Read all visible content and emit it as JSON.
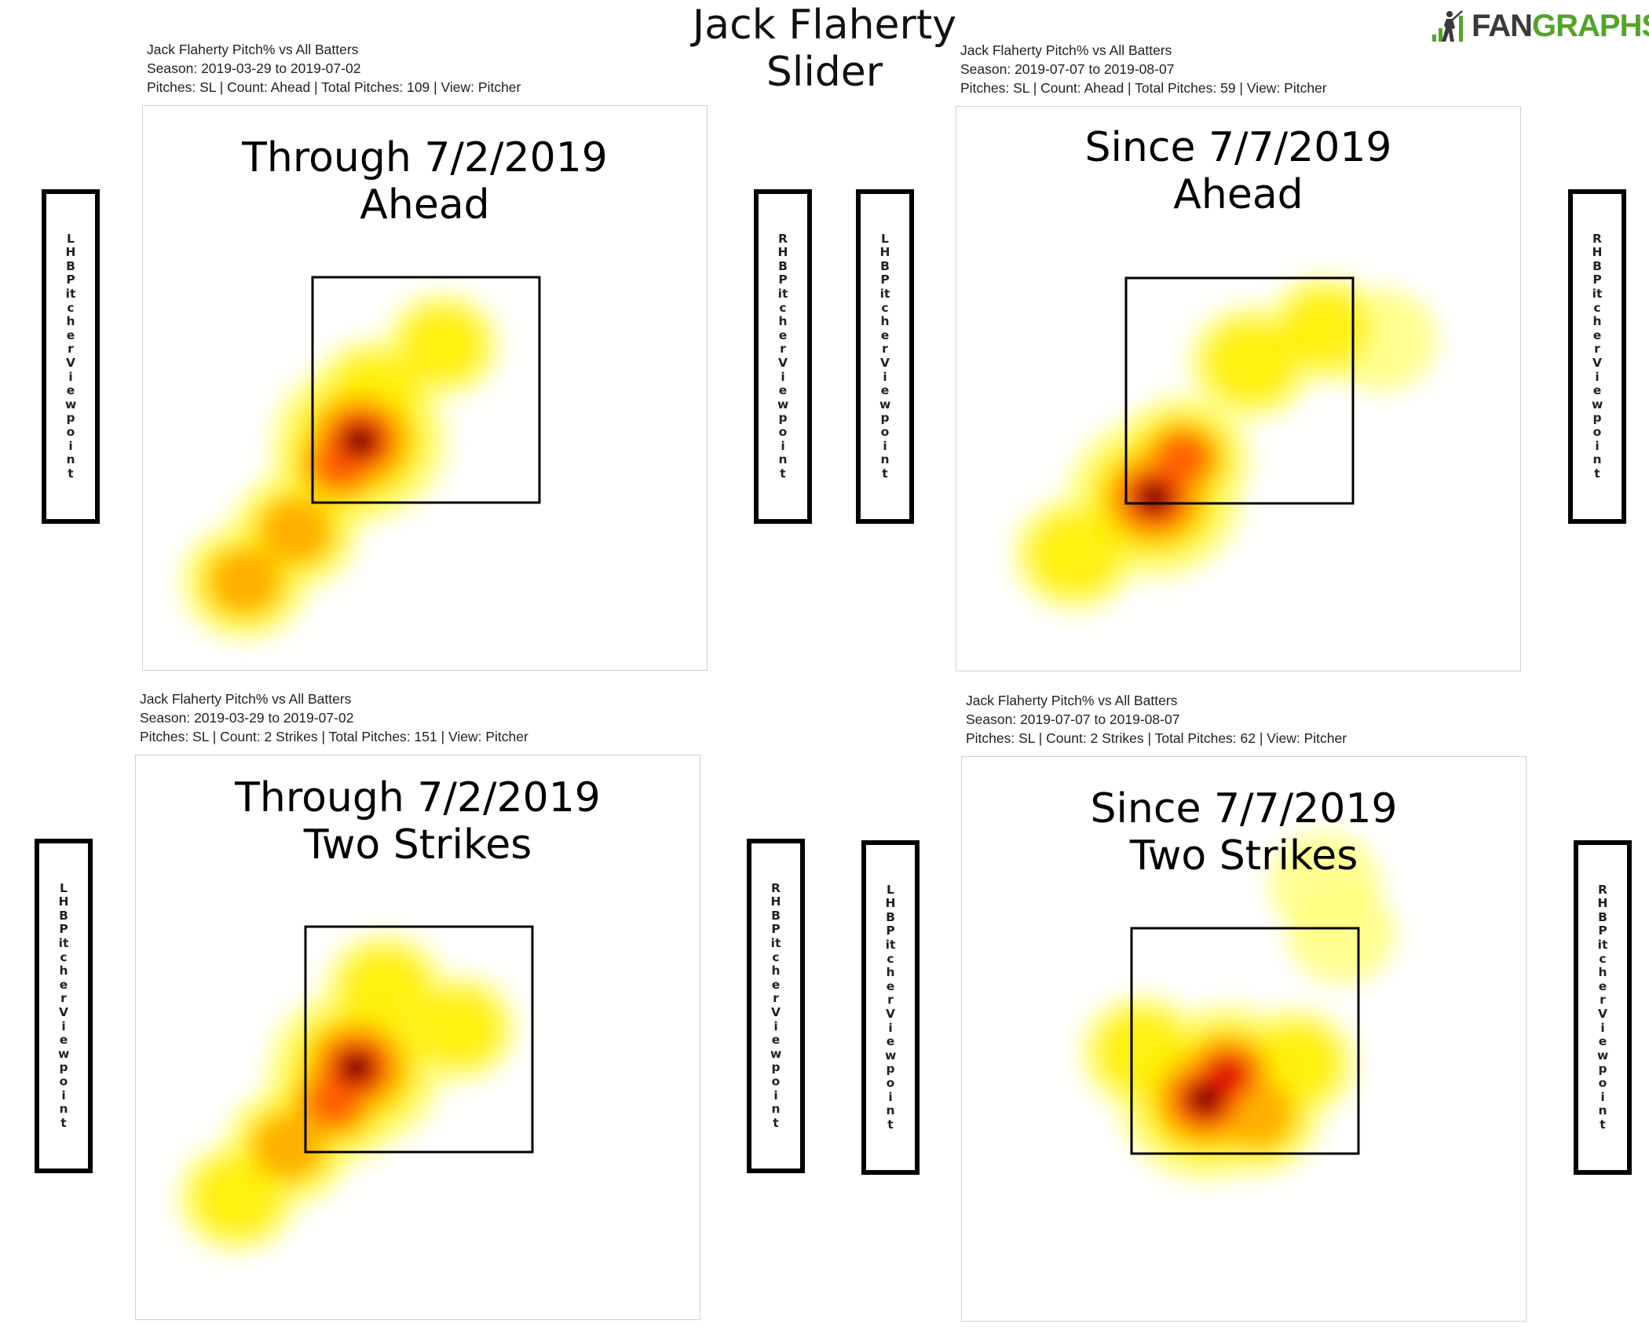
{
  "title": {
    "line1": "Jack Flaherty",
    "line2": "Slider"
  },
  "logo": {
    "text_dark": "FAN",
    "text_green": "GRAPHS",
    "icon": "fangraphs-batter-logo-icon",
    "color_green": "#52a52a"
  },
  "viewpoint_labels": {
    "left": "LHB Pitcher Viewpoint",
    "right": "RHB Pitcher Viewpoint"
  },
  "heatmap_colors": [
    "#fffef0",
    "#ffff80",
    "#ffee00",
    "#ffb000",
    "#ff6000",
    "#e00000",
    "#600000",
    "#000000"
  ],
  "panels": [
    {
      "header": {
        "line1": "Jack Flaherty Pitch% vs All Batters",
        "line2": "Season: 2019-03-29 to 2019-07-02",
        "line3": "Pitches: SL | Count: Ahead | Total Pitches: 109 | View: Pitcher"
      },
      "plot_title": {
        "line1": "Through 7/2/2019",
        "line2": "Ahead"
      }
    },
    {
      "header": {
        "line1": "Jack Flaherty Pitch% vs All Batters",
        "line2": "Season: 2019-07-07 to 2019-08-07",
        "line3": "Pitches: SL | Count: Ahead | Total Pitches: 59 | View: Pitcher"
      },
      "plot_title": {
        "line1": "Since 7/7/2019",
        "line2": "Ahead"
      }
    },
    {
      "header": {
        "line1": "Jack Flaherty Pitch% vs All Batters",
        "line2": "Season: 2019-03-29 to 2019-07-02",
        "line3": "Pitches: SL | Count: 2 Strikes | Total Pitches: 151 | View: Pitcher"
      },
      "plot_title": {
        "line1": "Through 7/2/2019",
        "line2": "Two Strikes"
      }
    },
    {
      "header": {
        "line1": "Jack Flaherty Pitch% vs All Batters",
        "line2": "Season: 2019-07-07 to 2019-08-07",
        "line3": "Pitches: SL | Count: 2 Strikes | Total Pitches: 62 | View: Pitcher"
      },
      "plot_title": {
        "line1": "Since 7/7/2019",
        "line2": "Two Strikes"
      }
    }
  ],
  "chart_data": [
    {
      "type": "heatmap",
      "title": "Through 7/2/2019 Ahead",
      "metric": "Pitch%",
      "pitch_type": "SL",
      "count": "Ahead",
      "total_pitches": 109,
      "view": "Pitcher",
      "strike_zone": "outlined square",
      "hotspots": [
        {
          "x": -0.58,
          "y": 0.55,
          "intensity": 1.0
        },
        {
          "x": -0.75,
          "y": 0.35,
          "intensity": 0.55
        },
        {
          "x": -1.15,
          "y": -0.25,
          "intensity": 0.4
        },
        {
          "x": -1.6,
          "y": -0.7,
          "intensity": 0.4
        },
        {
          "x": -0.45,
          "y": 0.95,
          "intensity": 0.35
        },
        {
          "x": 0.15,
          "y": 1.4,
          "intensity": 0.22
        }
      ]
    },
    {
      "type": "heatmap",
      "title": "Since 7/7/2019 Ahead",
      "metric": "Pitch%",
      "pitch_type": "SL",
      "count": "Ahead",
      "total_pitches": 59,
      "view": "Pitcher",
      "strike_zone": "outlined square",
      "hotspots": [
        {
          "x": -0.75,
          "y": 0.05,
          "intensity": 1.0
        },
        {
          "x": -0.5,
          "y": 0.4,
          "intensity": 0.5
        },
        {
          "x": 0.1,
          "y": 1.25,
          "intensity": 0.35
        },
        {
          "x": 0.75,
          "y": 1.55,
          "intensity": 0.25
        },
        {
          "x": -1.45,
          "y": -0.45,
          "intensity": 0.35
        },
        {
          "x": 1.25,
          "y": 1.45,
          "intensity": 0.2
        }
      ]
    },
    {
      "type": "heatmap",
      "title": "Through 7/2/2019 Two Strikes",
      "metric": "Pitch%",
      "pitch_type": "SL",
      "count": "2 Strikes",
      "total_pitches": 151,
      "view": "Pitcher",
      "strike_zone": "outlined square",
      "hotspots": [
        {
          "x": -0.55,
          "y": 0.75,
          "intensity": 1.0
        },
        {
          "x": -0.75,
          "y": 0.45,
          "intensity": 0.55
        },
        {
          "x": -1.15,
          "y": 0.05,
          "intensity": 0.4
        },
        {
          "x": -1.6,
          "y": -0.4,
          "intensity": 0.3
        },
        {
          "x": -0.3,
          "y": 1.45,
          "intensity": 0.3
        },
        {
          "x": 0.35,
          "y": 1.1,
          "intensity": 0.25
        }
      ]
    },
    {
      "type": "heatmap",
      "title": "Since 7/7/2019 Two Strikes",
      "metric": "Pitch%",
      "pitch_type": "SL",
      "count": "2 Strikes",
      "total_pitches": 62,
      "view": "Pitcher",
      "strike_zone": "outlined square",
      "hotspots": [
        {
          "x": -0.35,
          "y": 0.48,
          "intensity": 1.0
        },
        {
          "x": -0.15,
          "y": 0.7,
          "intensity": 0.7
        },
        {
          "x": 0.1,
          "y": 0.35,
          "intensity": 0.45
        },
        {
          "x": -0.9,
          "y": 0.9,
          "intensity": 0.35
        },
        {
          "x": 0.45,
          "y": 0.8,
          "intensity": 0.3
        },
        {
          "x": 0.7,
          "y": 2.4,
          "intensity": 0.18
        },
        {
          "x": 0.85,
          "y": 1.95,
          "intensity": 0.15
        }
      ]
    }
  ]
}
